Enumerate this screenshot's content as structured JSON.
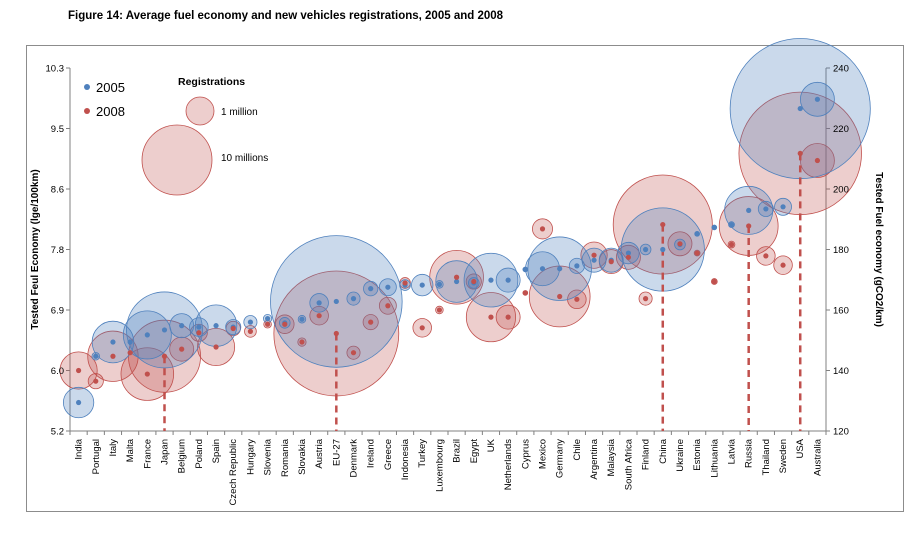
{
  "figure_title": "Figure 14: Average fuel economy and new vehicles registrations, 2005 and 2008",
  "colors": {
    "s2005_dot": "#4f81bd",
    "s2005_fill": "rgba(79,129,189,0.30)",
    "s2005_stroke": "#4f81bd",
    "s2008_dot": "#c0504d",
    "s2008_fill": "rgba(192,80,77,0.28)",
    "s2008_stroke": "#c0504d",
    "dash": "#c0504d",
    "axis": "#808080"
  },
  "legend": {
    "series_2005": "2005",
    "series_2008": "2008",
    "registrations_title": "Registrations",
    "size_1": "1 million",
    "size_10": "10 millions"
  },
  "chart_data": {
    "type": "scatter",
    "title": "Figure 14: Average fuel economy and new vehicles registrations, 2005 and 2008",
    "ylabel": "Tested Feul Economy (lge/100km)",
    "y2label": "Tested Fuel economy (gCO2/km)",
    "ylim": [
      5.2,
      10.3
    ],
    "y2lim": [
      120,
      240
    ],
    "yticks": [
      "5.2",
      "6.0",
      "6.9",
      "7.8",
      "8.6",
      "9.5",
      "10.3"
    ],
    "y2ticks": [
      "120",
      "140",
      "160",
      "180",
      "200",
      "220",
      "240"
    ],
    "categories": [
      "India",
      "Portugal",
      "Italy",
      "Malta",
      "France",
      "Japan",
      "Belgium",
      "Poland",
      "Spain",
      "Czech Republic",
      "Hungary",
      "Slovenia",
      "Romania",
      "Slovakia",
      "Austria",
      "EU-27",
      "Denmark",
      "Ireland",
      "Greece",
      "Indonesia",
      "Turkey",
      "Luxembourg",
      "Brazil",
      "Egypt",
      "UK",
      "Netherlands",
      "Cyprus",
      "Mexico",
      "Germany",
      "Chile",
      "Argentina",
      "Malaysia",
      "South Africa",
      "Finland",
      "China",
      "Ukraine",
      "Estonia",
      "Lithuania",
      "Latvia",
      "Russia",
      "Thailand",
      "Sweden",
      "USA",
      "Australia"
    ],
    "bubble_size_unit": "million registrations",
    "dashed_drops": [
      "Japan",
      "EU-27",
      "China",
      "Russia",
      "USA"
    ],
    "series": [
      {
        "name": "2005",
        "values": [
          5.6,
          6.25,
          6.45,
          6.45,
          6.55,
          6.62,
          6.68,
          6.66,
          6.68,
          6.66,
          6.73,
          6.78,
          6.72,
          6.77,
          7.0,
          7.02,
          7.06,
          7.2,
          7.22,
          7.25,
          7.25,
          7.26,
          7.3,
          7.28,
          7.32,
          7.32,
          7.47,
          7.48,
          7.48,
          7.52,
          7.6,
          7.6,
          7.7,
          7.75,
          7.75,
          7.82,
          7.97,
          8.06,
          8.1,
          8.3,
          8.32,
          8.35,
          9.73,
          9.86
        ],
        "sizes": [
          0.8,
          0.05,
          1.5,
          0.01,
          2.0,
          5.0,
          0.5,
          0.3,
          1.5,
          0.2,
          0.15,
          0.06,
          0.1,
          0.05,
          0.3,
          15.0,
          0.15,
          0.18,
          0.25,
          0.1,
          0.4,
          0.05,
          1.5,
          0.1,
          2.5,
          0.5,
          0.02,
          1.0,
          3.5,
          0.2,
          0.5,
          0.5,
          0.4,
          0.1,
          6.0,
          0.1,
          0.02,
          0.02,
          0.03,
          2.0,
          0.2,
          0.25,
          17.0,
          1.0
        ]
      },
      {
        "name": "2008",
        "values": [
          6.05,
          5.9,
          6.25,
          6.3,
          6.0,
          6.25,
          6.35,
          6.58,
          6.38,
          6.64,
          6.6,
          6.7,
          6.7,
          6.45,
          6.82,
          6.57,
          6.3,
          6.73,
          6.96,
          7.28,
          6.65,
          6.9,
          7.36,
          7.3,
          6.8,
          6.8,
          7.14,
          8.04,
          7.09,
          7.05,
          7.67,
          7.58,
          7.64,
          7.06,
          8.1,
          7.83,
          7.7,
          7.3,
          7.82,
          8.08,
          7.66,
          7.53,
          9.1,
          9.0
        ],
        "sizes": [
          1.2,
          0.2,
          2.2,
          0.01,
          2.4,
          4.5,
          0.5,
          0.25,
          1.2,
          0.18,
          0.12,
          0.05,
          0.3,
          0.06,
          0.3,
          13.5,
          0.15,
          0.2,
          0.25,
          0.1,
          0.3,
          0.05,
          2.5,
          0.2,
          2.1,
          0.5,
          0.02,
          0.35,
          3.2,
          0.3,
          0.6,
          0.5,
          0.5,
          0.15,
          8.5,
          0.5,
          0.03,
          0.03,
          0.04,
          3.0,
          0.3,
          0.3,
          13.0,
          1.0
        ]
      }
    ]
  }
}
